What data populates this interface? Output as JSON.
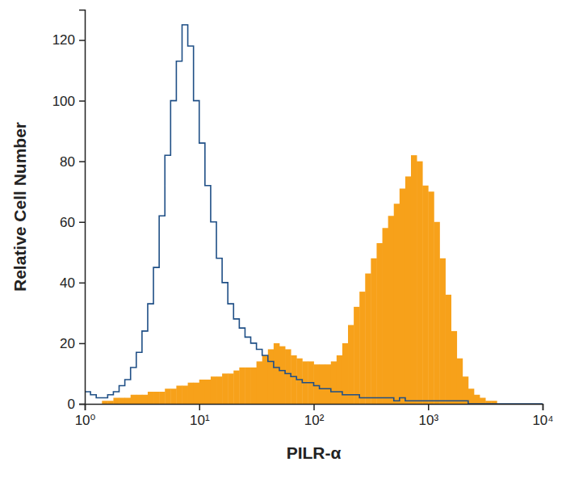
{
  "chart_data": {
    "type": "histogram",
    "x_label": "PILR-α",
    "y_label": "Relative Cell Number",
    "log": "x",
    "xlim": [
      1,
      10000
    ],
    "xticks": [
      {
        "value": 1,
        "label": "10⁰"
      },
      {
        "value": 10,
        "label": "10¹"
      },
      {
        "value": 100,
        "label": "10²"
      },
      {
        "value": 1000,
        "label": "10³"
      },
      {
        "value": 10000,
        "label": "10⁴"
      }
    ],
    "ylim": [
      0,
      130
    ],
    "yticks": [
      0,
      20,
      40,
      60,
      80,
      100,
      120
    ],
    "bins": [
      1,
      1.122,
      1.259,
      1.413,
      1.585,
      1.778,
      1.995,
      2.239,
      2.512,
      2.818,
      3.162,
      3.548,
      3.981,
      4.467,
      5.012,
      5.623,
      6.31,
      7.079,
      7.943,
      8.913,
      10,
      11.22,
      12.59,
      14.13,
      15.85,
      17.78,
      19.95,
      22.39,
      25.12,
      28.18,
      31.62,
      35.48,
      39.81,
      44.67,
      50.12,
      56.23,
      63.1,
      70.79,
      79.43,
      89.13,
      100,
      112.2,
      125.9,
      141.3,
      158.5,
      177.8,
      199.5,
      223.9,
      251.2,
      281.8,
      316.2,
      354.8,
      398.1,
      446.7,
      501.2,
      562.3,
      631,
      707.9,
      794.3,
      891.3,
      1000,
      1122,
      1259,
      1413,
      1585,
      1778,
      1995,
      2239,
      2512,
      2818,
      3162,
      3548,
      3981,
      4467,
      5012,
      5623,
      6310,
      7079,
      7943,
      8913,
      10000
    ],
    "series": [
      {
        "type": "bar",
        "color": "#f7a11a",
        "values": [
          0,
          0,
          0,
          1,
          1,
          2,
          2,
          2,
          3,
          3,
          3,
          4,
          4,
          4,
          5,
          5,
          6,
          6,
          7,
          7,
          8,
          8,
          9,
          9,
          10,
          10,
          11,
          12,
          12,
          12,
          14,
          16,
          18,
          20,
          19,
          18,
          16,
          15,
          14,
          14,
          13,
          13,
          13,
          14,
          16,
          20,
          26,
          32,
          37,
          43,
          48,
          53,
          58,
          62,
          66,
          71,
          75,
          82,
          80,
          72,
          70,
          60,
          48,
          36,
          24,
          15,
          9,
          5,
          3,
          2,
          1,
          1,
          0,
          0,
          0,
          0,
          0,
          0,
          0,
          0
        ]
      },
      {
        "type": "step",
        "color": "#1f4f86",
        "values": [
          4,
          3,
          2,
          2,
          3,
          4,
          6,
          8,
          12,
          17,
          24,
          33,
          45,
          62,
          82,
          100,
          113,
          125,
          118,
          100,
          86,
          72,
          60,
          48,
          40,
          33,
          28,
          25,
          22,
          20,
          18,
          16,
          14,
          12,
          11,
          10,
          9,
          8,
          7,
          7,
          6,
          5,
          5,
          4,
          4,
          3,
          3,
          3,
          2,
          2,
          2,
          2,
          2,
          2,
          1,
          2,
          1,
          1,
          1,
          1,
          1,
          1,
          1,
          1,
          1,
          1,
          1,
          0,
          0,
          0,
          0,
          0,
          0,
          0,
          0,
          0,
          0,
          0,
          0,
          0
        ]
      }
    ]
  }
}
